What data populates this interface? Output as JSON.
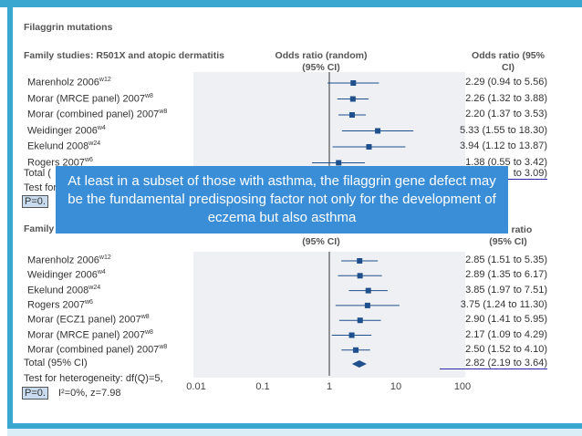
{
  "title": "Filaggrin mutations",
  "callout": "At least in a subset of those with asthma, the filaggrin gene defect may be the fundamental predisposing factor not only for the development of eczema but also asthma",
  "x_ticks": [
    "0.01",
    "0.1",
    "1",
    "10",
    "100"
  ],
  "colors": {
    "accent": "#39a7cf",
    "marker": "#1f4f8c",
    "callout": "#3a8ed8",
    "total_underline": "#2a2aa8"
  },
  "chart_data": [
    {
      "type": "forest",
      "title": "Family studies: R501X and atopic dermatitis",
      "col_or": "Odds ratio (random) (95% CI)",
      "col_ci": "Odds ratio (95% CI)",
      "x_scale": "log",
      "xlim": [
        0.01,
        100
      ],
      "studies": [
        {
          "label": "Marenholz 2006",
          "sup": "w12",
          "or": 2.29,
          "lo": 0.94,
          "hi": 5.56,
          "ci": "2.29 (0.94 to 5.56)"
        },
        {
          "label": "Morar (MRCE panel) 2007",
          "sup": "w8",
          "or": 2.26,
          "lo": 1.32,
          "hi": 3.88,
          "ci": "2.26 (1.32 to 3.88)"
        },
        {
          "label": "Morar (combined panel) 2007",
          "sup": "w8",
          "or": 2.2,
          "lo": 1.37,
          "hi": 3.53,
          "ci": "2.20 (1.37 to 3.53)"
        },
        {
          "label": "Weidinger 2006",
          "sup": "w4",
          "or": 5.33,
          "lo": 1.55,
          "hi": 18.3,
          "ci": "5.33 (1.55 to 18.30)"
        },
        {
          "label": "Ekelund 2008",
          "sup": "w24",
          "or": 3.94,
          "lo": 1.12,
          "hi": 13.87,
          "ci": "3.94 (1.12 to 13.87)"
        },
        {
          "label": "Rogers 2007",
          "sup": "w6",
          "or": 1.38,
          "lo": 0.55,
          "hi": 3.42,
          "ci": "1.38 (0.55 to 3.42)"
        }
      ],
      "total": {
        "label": "Total (",
        "ci": "to 3.09)"
      },
      "het_label": "Test for",
      "p_label": "P=0."
    },
    {
      "type": "forest",
      "title": "Family studies:",
      "col_or": "(95% CI)",
      "col_ci": "(95% CI)",
      "col_ci_top": "Odds ratio",
      "x_scale": "log",
      "xlim": [
        0.01,
        100
      ],
      "studies": [
        {
          "label": "Marenholz 2006",
          "sup": "w12",
          "or": 2.85,
          "lo": 1.51,
          "hi": 5.35,
          "ci": "2.85 (1.51 to 5.35)"
        },
        {
          "label": "Weidinger 2006",
          "sup": "w4",
          "or": 2.89,
          "lo": 1.35,
          "hi": 6.17,
          "ci": "2.89 (1.35 to 6.17)"
        },
        {
          "label": "Ekelund 2008",
          "sup": "w24",
          "or": 3.85,
          "lo": 1.97,
          "hi": 7.51,
          "ci": "3.85 (1.97 to 7.51)"
        },
        {
          "label": "Rogers 2007",
          "sup": "w6",
          "or": 3.75,
          "lo": 1.24,
          "hi": 11.3,
          "ci": "3.75 (1.24 to 11.30)"
        },
        {
          "label": "Morar (ECZ1 panel) 2007",
          "sup": "w8",
          "or": 2.9,
          "lo": 1.41,
          "hi": 5.95,
          "ci": "2.90 (1.41 to 5.95)"
        },
        {
          "label": "Morar (MRCE panel) 2007",
          "sup": "w8",
          "or": 2.17,
          "lo": 1.09,
          "hi": 4.29,
          "ci": "2.17 (1.09 to 4.29)"
        },
        {
          "label": "Morar (combined panel) 2007",
          "sup": "w8",
          "or": 2.5,
          "lo": 1.52,
          "hi": 4.1,
          "ci": "2.50 (1.52 to 4.10)"
        }
      ],
      "total": {
        "label": "Total (95% CI)",
        "or": 2.82,
        "lo": 2.19,
        "hi": 3.64,
        "ci": "2.82 (2.19 to 3.64)"
      },
      "het_label": "Test for heterogeneity: df(Q)=5,",
      "p_label": "P=0.",
      "p_rest": "I²=0%, z=7.98"
    }
  ]
}
